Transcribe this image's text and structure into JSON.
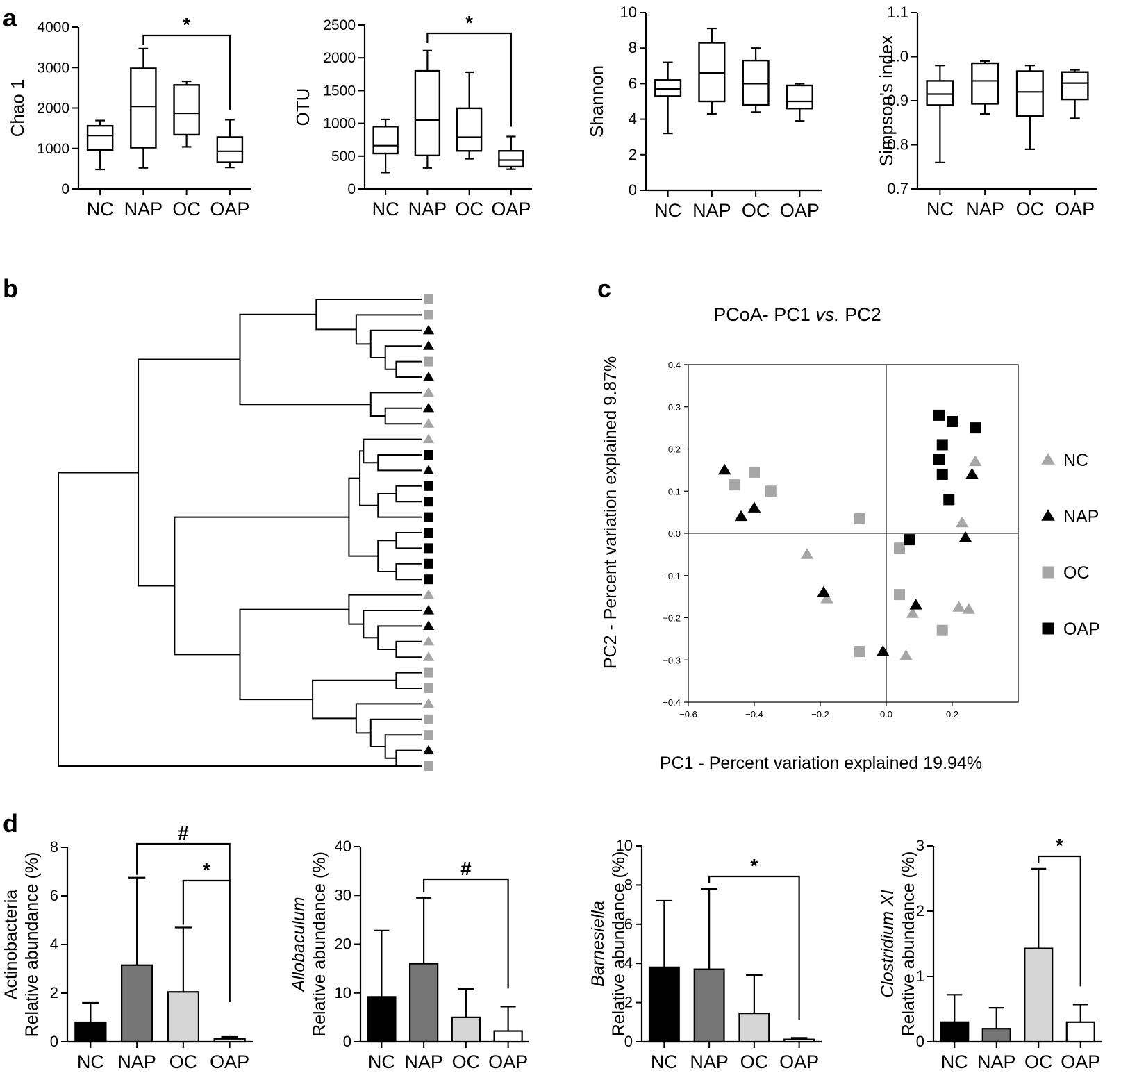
{
  "panel_labels": {
    "a": "a",
    "b": "b",
    "c": "c",
    "d": "d"
  },
  "colors": {
    "NC_marker": "#a6a6a6",
    "NAP_marker": "#000000",
    "OC_marker": "#a6a6a6",
    "OAP_marker": "#000000",
    "bar_NC": "#000000",
    "bar_NAP": "#767676",
    "bar_OC": "#d6d6d6",
    "bar_OAP": "#ffffff"
  },
  "chart_data": [
    {
      "id": "chao1",
      "type": "box",
      "panel": "a",
      "ylabel": "Chao 1",
      "ylim": [
        0,
        4000
      ],
      "yticks": [
        0,
        1000,
        2000,
        3000,
        4000
      ],
      "categories": [
        "NC",
        "NAP",
        "OC",
        "OAP"
      ],
      "boxes": [
        {
          "min": 480,
          "q1": 960,
          "median": 1320,
          "q3": 1560,
          "max": 1690
        },
        {
          "min": 520,
          "q1": 1020,
          "median": 2040,
          "q3": 2980,
          "max": 3470
        },
        {
          "min": 1040,
          "q1": 1340,
          "median": 1870,
          "q3": 2570,
          "max": 2660
        },
        {
          "min": 530,
          "q1": 660,
          "median": 930,
          "q3": 1280,
          "max": 1710
        }
      ],
      "significance": [
        {
          "from": 1,
          "to": 3,
          "label": "*"
        }
      ]
    },
    {
      "id": "otu",
      "type": "box",
      "panel": "a",
      "ylabel": "OTU",
      "ylim": [
        0,
        2500
      ],
      "yticks": [
        0,
        500,
        1000,
        1500,
        2000,
        2500
      ],
      "categories": [
        "NC",
        "NAP",
        "OC",
        "OAP"
      ],
      "boxes": [
        {
          "min": 250,
          "q1": 540,
          "median": 660,
          "q3": 950,
          "max": 1060
        },
        {
          "min": 320,
          "q1": 510,
          "median": 1050,
          "q3": 1800,
          "max": 2110
        },
        {
          "min": 460,
          "q1": 580,
          "median": 790,
          "q3": 1230,
          "max": 1780
        },
        {
          "min": 300,
          "q1": 340,
          "median": 440,
          "q3": 580,
          "max": 800
        }
      ],
      "significance": [
        {
          "from": 1,
          "to": 3,
          "label": "*"
        }
      ]
    },
    {
      "id": "shannon",
      "type": "box",
      "panel": "a",
      "ylabel": "Shannon",
      "ylim": [
        0,
        10
      ],
      "yticks": [
        0,
        2,
        4,
        6,
        8,
        10
      ],
      "categories": [
        "NC",
        "NAP",
        "OC",
        "OAP"
      ],
      "boxes": [
        {
          "min": 3.2,
          "q1": 5.3,
          "median": 5.7,
          "q3": 6.2,
          "max": 7.2
        },
        {
          "min": 4.3,
          "q1": 5.0,
          "median": 6.6,
          "q3": 8.3,
          "max": 9.1
        },
        {
          "min": 4.4,
          "q1": 4.8,
          "median": 6.0,
          "q3": 7.3,
          "max": 8.0
        },
        {
          "min": 3.9,
          "q1": 4.6,
          "median": 5.0,
          "q3": 5.9,
          "max": 6.0
        }
      ],
      "significance": []
    },
    {
      "id": "simpson",
      "type": "box",
      "panel": "a",
      "ylabel": "Simpson's index",
      "ylim": [
        0.7,
        1.1
      ],
      "yticks": [
        0.7,
        0.8,
        0.9,
        1.0,
        1.1
      ],
      "categories": [
        "NC",
        "NAP",
        "OC",
        "OAP"
      ],
      "boxes": [
        {
          "min": 0.76,
          "q1": 0.89,
          "median": 0.915,
          "q3": 0.945,
          "max": 0.98
        },
        {
          "min": 0.87,
          "q1": 0.893,
          "median": 0.945,
          "q3": 0.985,
          "max": 0.99
        },
        {
          "min": 0.79,
          "q1": 0.865,
          "median": 0.92,
          "q3": 0.967,
          "max": 0.98
        },
        {
          "min": 0.86,
          "q1": 0.903,
          "median": 0.94,
          "q3": 0.965,
          "max": 0.97
        }
      ],
      "significance": []
    },
    {
      "id": "dendrogram",
      "type": "dendrogram",
      "panel": "b",
      "leaves": [
        "OC",
        "OC",
        "NAP",
        "NAP",
        "OC",
        "NAP",
        "NC",
        "NAP",
        "NC",
        "NC",
        "OAP",
        "NAP",
        "OAP",
        "OAP",
        "OAP",
        "OAP",
        "OAP",
        "OAP",
        "OAP",
        "NC",
        "NAP",
        "NAP",
        "NC",
        "NC",
        "OC",
        "OC",
        "NC",
        "OC",
        "OC",
        "NAP",
        "OC"
      ],
      "merges": [
        [
          4,
          5,
          0.07
        ],
        [
          3,
          31,
          0.1
        ],
        [
          2,
          32,
          0.14
        ],
        [
          1,
          33,
          0.18
        ],
        [
          0,
          34,
          0.29
        ],
        [
          7,
          8,
          0.1
        ],
        [
          6,
          36,
          0.14
        ],
        [
          35,
          37,
          0.5
        ],
        [
          10,
          11,
          0.12
        ],
        [
          9,
          39,
          0.16
        ],
        [
          12,
          13,
          0.07
        ],
        [
          15,
          16,
          0.07
        ],
        [
          17,
          18,
          0.07
        ],
        [
          14,
          41,
          0.12
        ],
        [
          42,
          43,
          0.12
        ],
        [
          40,
          44,
          0.17
        ],
        [
          45,
          46,
          0.2
        ],
        [
          22,
          23,
          0.07
        ],
        [
          21,
          48,
          0.12
        ],
        [
          20,
          49,
          0.16
        ],
        [
          19,
          50,
          0.2
        ],
        [
          29,
          30,
          0.07
        ],
        [
          28,
          52,
          0.1
        ],
        [
          27,
          53,
          0.14
        ],
        [
          26,
          54,
          0.18
        ],
        [
          24,
          25,
          0.07
        ],
        [
          56,
          55,
          0.3
        ],
        [
          51,
          57,
          0.5
        ],
        [
          47,
          58,
          0.68
        ],
        [
          38,
          59,
          0.78
        ],
        [
          30.5,
          60,
          1.0
        ]
      ]
    },
    {
      "id": "pcoa",
      "type": "scatter",
      "panel": "c",
      "title_prefix": "PCoA- PC1 ",
      "title_italic": "vs.",
      "title_suffix": " PC2",
      "xlabel": "PC1 - Percent variation explained 19.94%",
      "ylabel": "PC2 - Percent variation explained 9.87%",
      "xlim": [
        -0.6,
        0.4
      ],
      "ylim": [
        -0.4,
        0.4
      ],
      "xticks": [
        -0.6,
        -0.4,
        -0.2,
        0.0,
        0.2
      ],
      "yticks": [
        -0.4,
        -0.3,
        -0.2,
        -0.1,
        0.0,
        0.1,
        0.2,
        0.3,
        0.4
      ],
      "legend": [
        "NC",
        "NAP",
        "OC",
        "OAP"
      ],
      "series": [
        {
          "name": "NC",
          "points": [
            [
              0.27,
              0.17
            ],
            [
              0.23,
              0.025
            ],
            [
              -0.24,
              -0.05
            ],
            [
              -0.18,
              -0.155
            ],
            [
              0.08,
              -0.19
            ],
            [
              0.06,
              -0.29
            ],
            [
              0.22,
              -0.175
            ],
            [
              0.25,
              -0.18
            ]
          ]
        },
        {
          "name": "NAP",
          "points": [
            [
              -0.49,
              0.15
            ],
            [
              -0.4,
              0.06
            ],
            [
              -0.44,
              0.04
            ],
            [
              0.26,
              0.14
            ],
            [
              0.24,
              -0.01
            ],
            [
              -0.19,
              -0.14
            ],
            [
              0.09,
              -0.17
            ],
            [
              -0.01,
              -0.28
            ]
          ]
        },
        {
          "name": "OC",
          "points": [
            [
              -0.4,
              0.145
            ],
            [
              -0.46,
              0.115
            ],
            [
              -0.35,
              0.1
            ],
            [
              -0.08,
              0.035
            ],
            [
              0.04,
              -0.035
            ],
            [
              0.04,
              -0.145
            ],
            [
              0.17,
              -0.23
            ],
            [
              -0.08,
              -0.28
            ]
          ]
        },
        {
          "name": "OAP",
          "points": [
            [
              0.16,
              0.28
            ],
            [
              0.2,
              0.265
            ],
            [
              0.27,
              0.25
            ],
            [
              0.17,
              0.21
            ],
            [
              0.16,
              0.175
            ],
            [
              0.17,
              0.14
            ],
            [
              0.19,
              0.08
            ],
            [
              0.07,
              -0.015
            ]
          ]
        }
      ]
    },
    {
      "id": "actinobacteria",
      "type": "bar",
      "panel": "d",
      "ylabel_top": "Actinobacteria",
      "ylabel_top_italic": false,
      "ylabel": "Relative abundance (%)",
      "ylim": [
        0,
        8
      ],
      "yticks": [
        0,
        2,
        4,
        6,
        8
      ],
      "categories": [
        "NC",
        "NAP",
        "OC",
        "OAP"
      ],
      "values": [
        0.8,
        3.15,
        2.05,
        0.12
      ],
      "errors": [
        0.8,
        3.6,
        2.65,
        0.08
      ],
      "significance": [
        {
          "from": 1,
          "to": 3,
          "label": "#"
        },
        {
          "from": 2,
          "to": 3,
          "label": "*"
        }
      ]
    },
    {
      "id": "allobaculum",
      "type": "bar",
      "panel": "d",
      "ylabel_top": "Allobaculum",
      "ylabel_top_italic": true,
      "ylabel": "Relative abundance (%)",
      "ylim": [
        0,
        40
      ],
      "yticks": [
        0,
        10,
        20,
        30,
        40
      ],
      "categories": [
        "NC",
        "NAP",
        "OC",
        "OAP"
      ],
      "values": [
        9.2,
        16,
        5,
        2.2
      ],
      "errors": [
        13.6,
        13.5,
        5.8,
        5
      ],
      "significance": [
        {
          "from": 1,
          "to": 3,
          "label": "#"
        }
      ]
    },
    {
      "id": "barnesiella",
      "type": "bar",
      "panel": "d",
      "ylabel_top": "Barnesiella",
      "ylabel_top_italic": true,
      "ylabel": "Relative abundance (%)",
      "ylim": [
        0,
        10
      ],
      "yticks": [
        0,
        2,
        4,
        6,
        8,
        10
      ],
      "categories": [
        "NC",
        "NAP",
        "OC",
        "OAP"
      ],
      "values": [
        3.8,
        3.7,
        1.45,
        0.12
      ],
      "errors": [
        3.4,
        4.1,
        1.95,
        0.08
      ],
      "significance": [
        {
          "from": 1,
          "to": 3,
          "label": "*"
        }
      ]
    },
    {
      "id": "clostridium",
      "type": "bar",
      "panel": "d",
      "ylabel_top": "Clostridium XI",
      "ylabel_top_italic": true,
      "ylabel": "Relative abundance (%)",
      "ylim": [
        0,
        3
      ],
      "yticks": [
        0,
        1,
        2,
        3
      ],
      "categories": [
        "NC",
        "NAP",
        "OC",
        "OAP"
      ],
      "values": [
        0.3,
        0.2,
        1.43,
        0.3
      ],
      "errors": [
        0.42,
        0.32,
        1.22,
        0.27
      ],
      "significance": [
        {
          "from": 2,
          "to": 3,
          "label": "*"
        }
      ]
    }
  ]
}
